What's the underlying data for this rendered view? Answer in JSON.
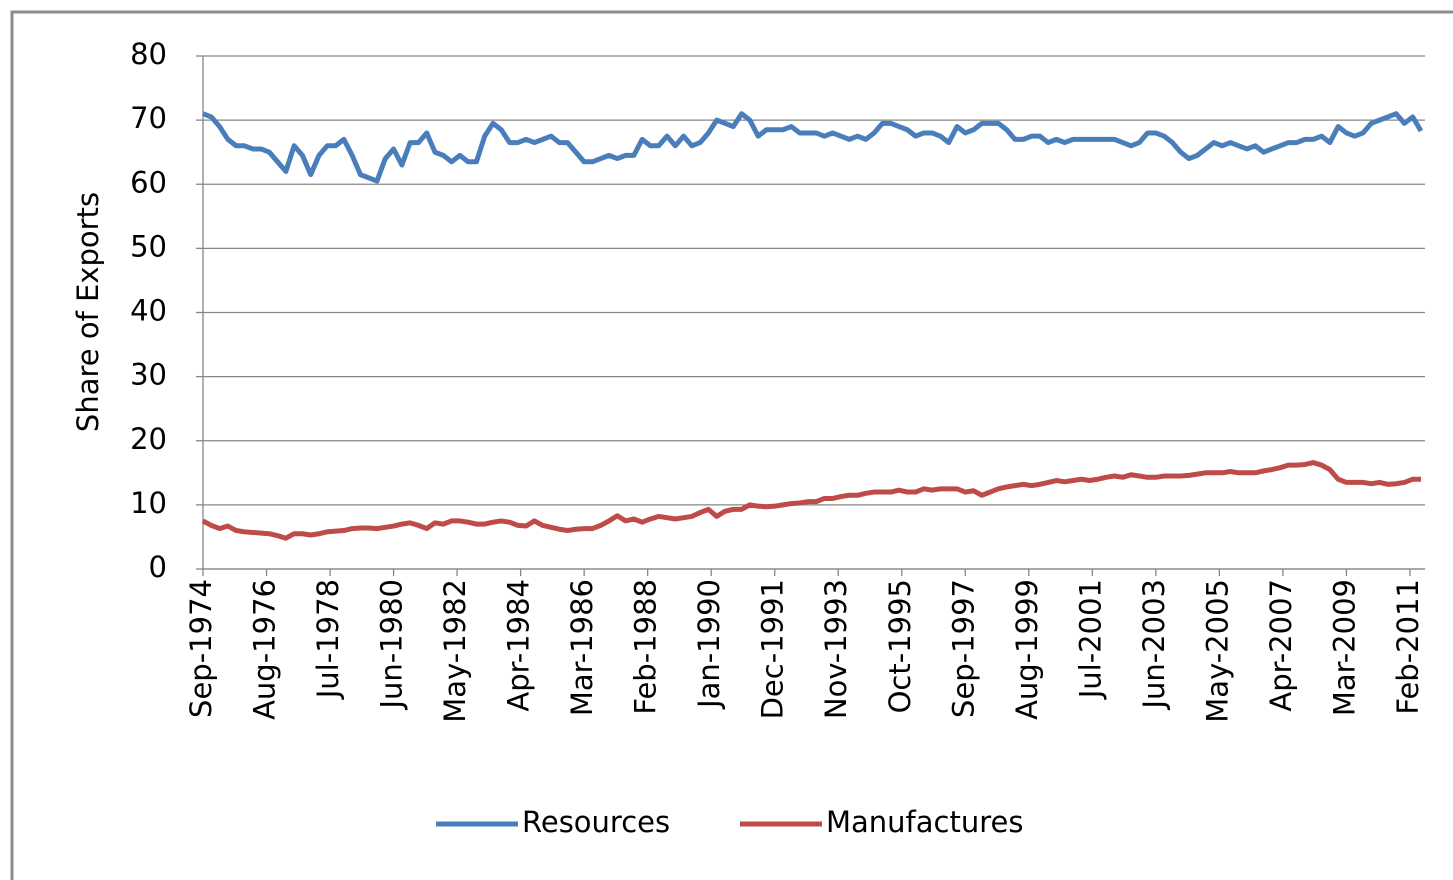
{
  "chart_data": {
    "type": "line",
    "y_label": "Share of Exports",
    "x": [
      "Sep-1974",
      "Dec-1974",
      "Mar-1975",
      "Jun-1975",
      "Sep-1975",
      "Dec-1975",
      "Mar-1976",
      "Jun-1976",
      "Sep-1976",
      "Dec-1976",
      "Mar-1977",
      "Jun-1977",
      "Sep-1977",
      "Dec-1977",
      "Mar-1978",
      "Jun-1978",
      "Sep-1978",
      "Dec-1978",
      "Mar-1979",
      "Jun-1979",
      "Sep-1979",
      "Dec-1979",
      "Mar-1980",
      "Jun-1980",
      "Sep-1980",
      "Dec-1980",
      "Mar-1981",
      "Jun-1981",
      "Sep-1981",
      "Dec-1981",
      "Mar-1982",
      "Jun-1982",
      "Sep-1982",
      "Dec-1982",
      "Mar-1983",
      "Jun-1983",
      "Sep-1983",
      "Dec-1983",
      "Mar-1984",
      "Jun-1984",
      "Sep-1984",
      "Dec-1984",
      "Mar-1985",
      "Jun-1985",
      "Sep-1985",
      "Dec-1985",
      "Mar-1986",
      "Jun-1986",
      "Sep-1986",
      "Dec-1986",
      "Mar-1987",
      "Jun-1987",
      "Sep-1987",
      "Dec-1987",
      "Mar-1988",
      "Jun-1988",
      "Sep-1988",
      "Dec-1988",
      "Mar-1989",
      "Jun-1989",
      "Sep-1989",
      "Dec-1989",
      "Mar-1990",
      "Jun-1990",
      "Sep-1990",
      "Dec-1990",
      "Mar-1991",
      "Jun-1991",
      "Sep-1991",
      "Dec-1991",
      "Mar-1992",
      "Jun-1992",
      "Sep-1992",
      "Dec-1992",
      "Mar-1993",
      "Jun-1993",
      "Sep-1993",
      "Dec-1993",
      "Mar-1994",
      "Jun-1994",
      "Sep-1994",
      "Dec-1994",
      "Mar-1995",
      "Jun-1995",
      "Sep-1995",
      "Dec-1995",
      "Mar-1996",
      "Jun-1996",
      "Sep-1996",
      "Dec-1996",
      "Mar-1997",
      "Jun-1997",
      "Sep-1997",
      "Dec-1997",
      "Mar-1998",
      "Jun-1998",
      "Sep-1998",
      "Dec-1998",
      "Mar-1999",
      "Jun-1999",
      "Sep-1999",
      "Dec-1999",
      "Mar-2000",
      "Jun-2000",
      "Sep-2000",
      "Dec-2000",
      "Mar-2001",
      "Jun-2001",
      "Sep-2001",
      "Dec-2001",
      "Mar-2002",
      "Jun-2002",
      "Sep-2002",
      "Dec-2002",
      "Mar-2003",
      "Jun-2003",
      "Sep-2003",
      "Dec-2003",
      "Mar-2004",
      "Jun-2004",
      "Sep-2004",
      "Dec-2004",
      "Mar-2005",
      "Jun-2005",
      "Sep-2005",
      "Dec-2005",
      "Mar-2006",
      "Jun-2006",
      "Sep-2006",
      "Dec-2006",
      "Mar-2007",
      "Jun-2007",
      "Sep-2007",
      "Dec-2007",
      "Mar-2008",
      "Jun-2008",
      "Sep-2008",
      "Dec-2008",
      "Mar-2009",
      "Jun-2009",
      "Sep-2009",
      "Dec-2009",
      "Mar-2010",
      "Jun-2010",
      "Sep-2010",
      "Dec-2010",
      "Mar-2011",
      "Jun-2011"
    ],
    "series": [
      {
        "name": "Resources",
        "color": "#4a7ebb",
        "values": [
          71,
          70.5,
          69,
          67,
          66,
          66,
          65.5,
          65.5,
          65,
          63.5,
          62,
          66,
          64.5,
          61.5,
          64.5,
          66,
          66,
          67,
          64.5,
          61.5,
          61,
          60.5,
          64,
          65.5,
          63,
          66.5,
          66.5,
          68,
          65,
          64.5,
          63.5,
          64.5,
          63.5,
          63.5,
          67.5,
          69.5,
          68.5,
          66.5,
          66.5,
          67,
          66.5,
          67,
          67.5,
          66.5,
          66.5,
          65,
          63.5,
          63.5,
          64,
          64.5,
          64,
          64.5,
          64.5,
          67,
          66,
          66,
          67.5,
          66,
          67.5,
          66,
          66.5,
          68,
          70,
          69.5,
          69,
          71,
          70,
          67.5,
          68.5,
          68.5,
          68.5,
          69,
          68,
          68,
          68,
          67.5,
          68,
          67.5,
          67,
          67.5,
          67,
          68,
          69.5,
          69.5,
          69,
          68.5,
          67.5,
          68,
          68,
          67.5,
          66.5,
          69,
          68,
          68.5,
          69.5,
          69.5,
          69.5,
          68.5,
          67,
          67,
          67.5,
          67.5,
          66.5,
          67,
          66.5,
          67,
          67,
          67,
          67,
          67,
          67,
          66.5,
          66,
          66.5,
          68,
          68,
          67.5,
          66.5,
          65,
          64,
          64.5,
          65.5,
          66.5,
          66,
          66.5,
          66,
          65.5,
          66,
          65,
          65.5,
          66,
          66.5,
          66.5,
          67,
          67,
          67.5,
          66.5,
          69,
          68,
          67.5,
          68,
          69.5,
          70,
          70.5,
          71,
          69.5,
          70.5,
          68.3
        ]
      },
      {
        "name": "Manufactures",
        "color": "#be4b48",
        "values": [
          7.5,
          6.8,
          6.3,
          6.7,
          6,
          5.8,
          5.7,
          5.6,
          5.5,
          5.2,
          4.8,
          5.5,
          5.5,
          5.3,
          5.5,
          5.8,
          5.9,
          6,
          6.3,
          6.4,
          6.4,
          6.3,
          6.5,
          6.7,
          7,
          7.2,
          6.8,
          6.3,
          7.2,
          7,
          7.5,
          7.5,
          7.3,
          7,
          7,
          7.3,
          7.5,
          7.3,
          6.8,
          6.7,
          7.5,
          6.8,
          6.5,
          6.2,
          6,
          6.2,
          6.3,
          6.3,
          6.8,
          7.5,
          8.3,
          7.5,
          7.8,
          7.3,
          7.8,
          8.2,
          8,
          7.8,
          8,
          8.2,
          8.8,
          9.3,
          8.2,
          9,
          9.3,
          9.3,
          10,
          9.8,
          9.7,
          9.8,
          10,
          10.2,
          10.3,
          10.5,
          10.5,
          11,
          11,
          11.3,
          11.5,
          11.5,
          11.8,
          12,
          12,
          12,
          12.3,
          12,
          12,
          12.5,
          12.3,
          12.5,
          12.5,
          12.5,
          12,
          12.2,
          11.5,
          12,
          12.5,
          12.8,
          13,
          13.2,
          13,
          13.2,
          13.5,
          13.8,
          13.6,
          13.8,
          14,
          13.8,
          14,
          14.3,
          14.5,
          14.3,
          14.7,
          14.5,
          14.3,
          14.3,
          14.5,
          14.5,
          14.5,
          14.6,
          14.8,
          15,
          15,
          15,
          15.2,
          15,
          15,
          15,
          15.3,
          15.5,
          15.8,
          16.2,
          16.2,
          16.3,
          16.6,
          16.2,
          15.5,
          14,
          13.5,
          13.5,
          13.5,
          13.3,
          13.5,
          13.2,
          13.3,
          13.5,
          14,
          14
        ]
      }
    ],
    "xlim": [
      "Sep-1974",
      "Jun-2011"
    ],
    "xticks": [
      "Sep-1974",
      "Aug-1976",
      "Jul-1978",
      "Jun-1980",
      "May-1982",
      "Apr-1984",
      "Mar-1986",
      "Feb-1988",
      "Jan-1990",
      "Dec-1991",
      "Nov-1993",
      "Oct-1995",
      "Sep-1997",
      "Aug-1999",
      "Jul-2001",
      "Jun-2003",
      "May-2005",
      "Apr-2007",
      "Mar-2009",
      "Feb-2011"
    ],
    "ylim": [
      0,
      80
    ],
    "yticks": [
      0,
      10,
      20,
      30,
      40,
      50,
      60,
      70,
      80
    ],
    "grid": true,
    "legend": "bottom"
  }
}
